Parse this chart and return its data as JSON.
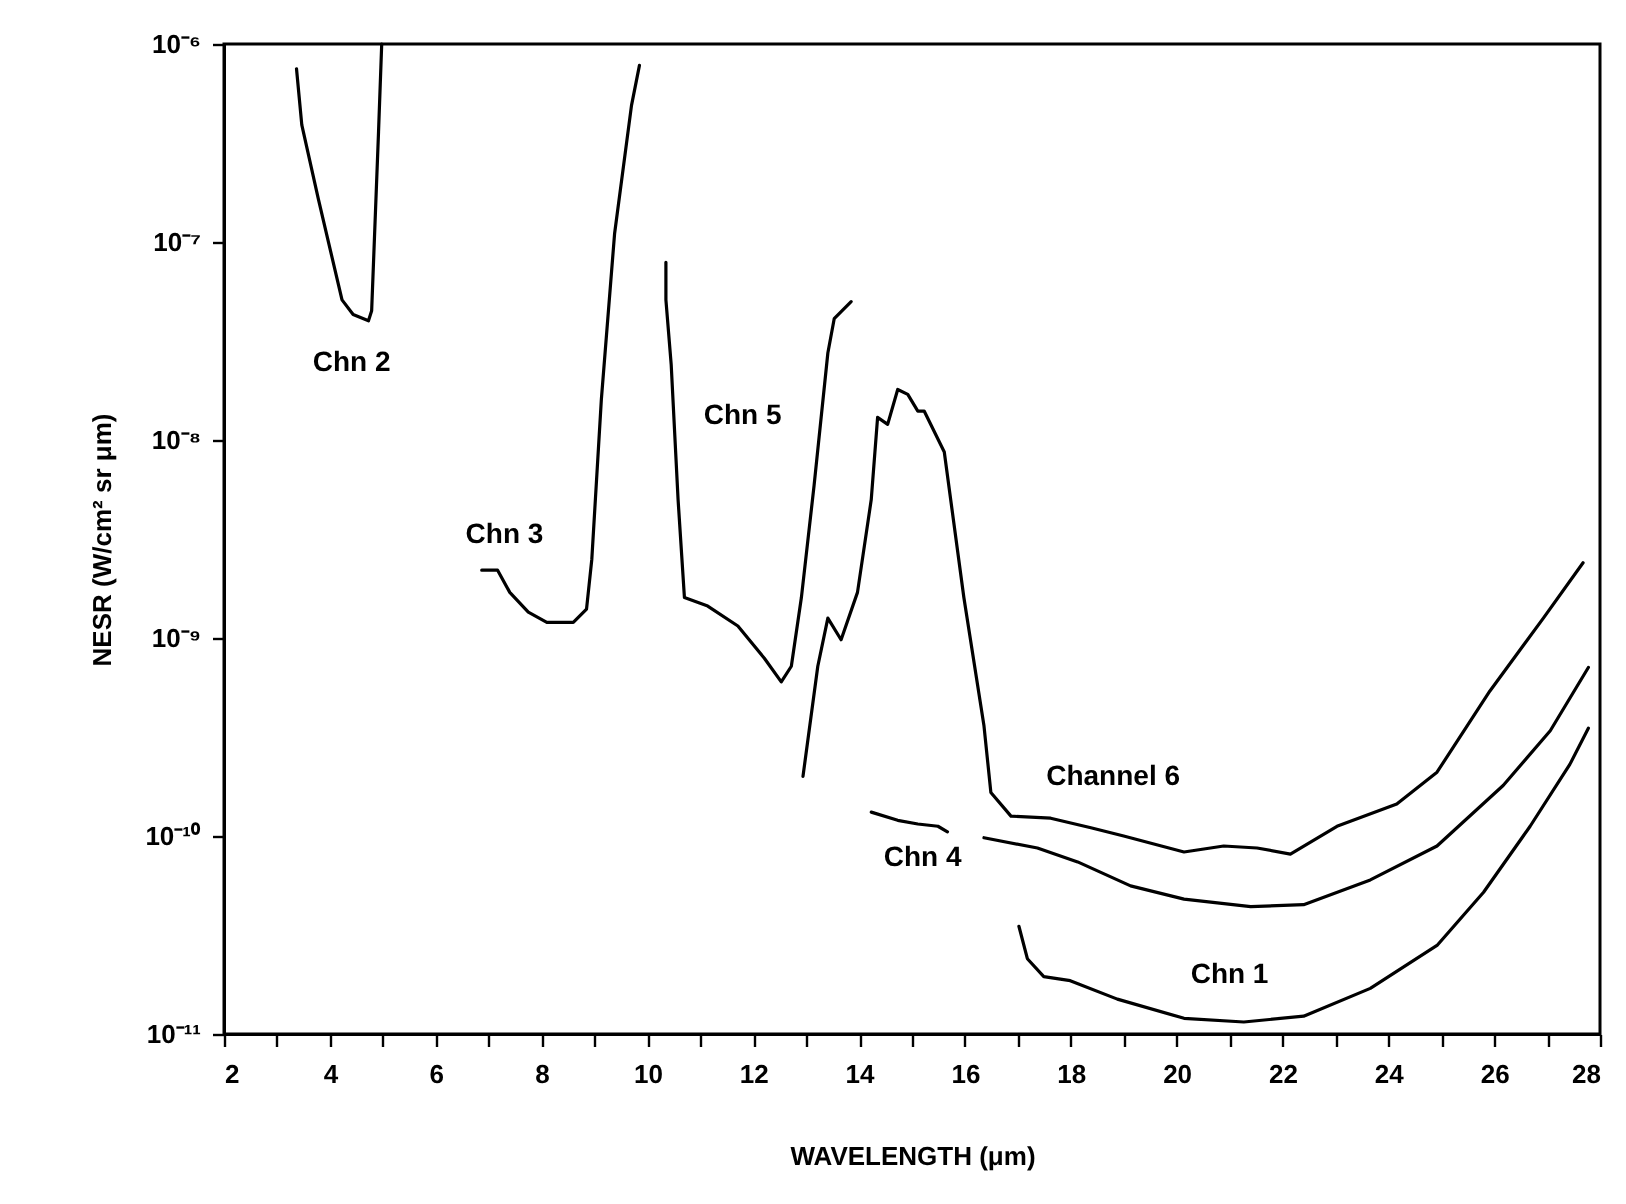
{
  "chart_data": {
    "type": "line",
    "xlabel": "WAVELENGTH (μm)",
    "ylabel": "NESR (W/cm² sr μm)",
    "log": "y",
    "grid": false,
    "marker": "none",
    "line_style": "solid",
    "xlim": [
      2,
      28
    ],
    "ylim": [
      1e-11,
      1e-06
    ],
    "xticks": [
      2,
      {
        "value": 3,
        "label": null
      },
      4,
      {
        "value": 5,
        "label": null
      },
      6,
      {
        "value": 7,
        "label": null
      },
      8,
      {
        "value": 9,
        "label": null
      },
      10,
      {
        "value": 11,
        "label": null
      },
      12,
      {
        "value": 13,
        "label": null
      },
      14,
      {
        "value": 15,
        "label": null
      },
      16,
      {
        "value": 17,
        "label": null
      },
      18,
      {
        "value": 19,
        "label": null
      },
      20,
      {
        "value": 21,
        "label": null
      },
      22,
      {
        "value": 23,
        "label": null
      },
      24,
      {
        "value": 25,
        "label": null
      },
      26,
      {
        "value": 27,
        "label": null
      },
      28
    ],
    "yticks": [
      {
        "value": 1e-11,
        "label": "10⁻¹¹"
      },
      {
        "value": 1e-10,
        "label": "10⁻¹⁰"
      },
      {
        "value": 1e-09,
        "label": "10⁻⁹"
      },
      {
        "value": 1e-08,
        "label": "10⁻⁸"
      },
      {
        "value": 1e-07,
        "label": "10⁻⁷"
      },
      {
        "value": 1e-06,
        "label": "10⁻⁶"
      }
    ],
    "series": [
      {
        "name": "Chn 2",
        "color": "#000000",
        "x": [
          3.37,
          3.47,
          3.78,
          4.23,
          4.44,
          4.73,
          4.79,
          4.92,
          4.98
        ],
        "values": [
          7.5e-07,
          3.9e-07,
          1.66e-07,
          5.1e-08,
          4.3e-08,
          4e-08,
          4.5e-08,
          3.6e-07,
          1e-06
        ]
      },
      {
        "name": "Chn 3",
        "color": "#000000",
        "x": [
          6.87,
          7.17,
          7.4,
          7.75,
          8.1,
          8.6,
          8.85,
          8.95,
          9.13,
          9.38,
          9.7,
          9.85
        ],
        "values": [
          2.2e-09,
          2.2e-09,
          1.7e-09,
          1.35e-09,
          1.2e-09,
          1.2e-09,
          1.4e-09,
          2.5e-09,
          1.6e-08,
          1.1e-07,
          4.9e-07,
          7.8e-07
        ]
      },
      {
        "name": "Chn 5",
        "color": "#000000",
        "x": [
          10.35,
          10.35,
          10.45,
          10.58,
          10.7,
          11.14,
          11.71,
          12.21,
          12.53,
          12.72,
          12.91,
          13.15,
          13.41,
          13.53,
          13.85
        ],
        "values": [
          7.9e-08,
          5.1e-08,
          2.4e-08,
          5e-09,
          1.6e-09,
          1.45e-09,
          1.15e-09,
          7.9e-10,
          6e-10,
          7.2e-10,
          1.6e-09,
          5.9e-09,
          2.75e-08,
          4.1e-08,
          5e-08
        ]
      },
      {
        "name": "Channel 6",
        "color": "#000000",
        "x": [
          12.94,
          13.22,
          13.41,
          13.66,
          13.97,
          14.23,
          14.35,
          14.54,
          14.73,
          14.92,
          15.11,
          15.23,
          15.61,
          15.98,
          16.36,
          16.49,
          16.87,
          17.62,
          18.38,
          19.0,
          20.14,
          20.89,
          21.52,
          22.15,
          23.03,
          24.16,
          24.92,
          25.92,
          26.93,
          27.68
        ],
        "values": [
          2e-10,
          7.2e-10,
          1.26e-09,
          9.8e-10,
          1.7e-09,
          5e-09,
          1.3e-08,
          1.2e-08,
          1.8e-08,
          1.7e-08,
          1.4e-08,
          1.4e-08,
          8.7e-09,
          1.6e-09,
          3.6e-10,
          1.66e-10,
          1.26e-10,
          1.23e-10,
          1.1e-10,
          1e-10,
          8.3e-11,
          8.9e-11,
          8.7e-11,
          8.1e-11,
          1.12e-10,
          1.45e-10,
          2.1e-10,
          5.4e-10,
          1.26e-09,
          2.4e-09
        ]
      },
      {
        "name": "Chn 4",
        "color": "#000000",
        "x": [
          14.23,
          14.73,
          15.11,
          15.49,
          15.67,
          16.0,
          16.36,
          17.37,
          18.13,
          19.13,
          20.14,
          21.4,
          22.4,
          23.66,
          24.92,
          26.17,
          27.06,
          27.78
        ],
        "values": [
          1.32e-10,
          1.2e-10,
          1.15e-10,
          1.12e-10,
          1.05e-10,
          null,
          9.8e-11,
          8.7e-11,
          7.4e-11,
          5.6e-11,
          4.8e-11,
          4.4e-11,
          4.5e-11,
          6e-11,
          8.9e-11,
          1.8e-10,
          3.4e-10,
          7.1e-10
        ]
      },
      {
        "name": "Chn 1",
        "color": "#000000",
        "x": [
          17.02,
          17.18,
          17.49,
          17.99,
          18.88,
          20.14,
          21.27,
          22.4,
          23.66,
          24.92,
          25.8,
          26.68,
          27.43,
          27.78
        ],
        "values": [
          3.5e-11,
          2.4e-11,
          1.95e-11,
          1.86e-11,
          1.5e-11,
          1.2e-11,
          1.15e-11,
          1.23e-11,
          1.7e-11,
          2.8e-11,
          5.2e-11,
          1.12e-10,
          2.3e-10,
          3.5e-10
        ]
      }
    ]
  }
}
